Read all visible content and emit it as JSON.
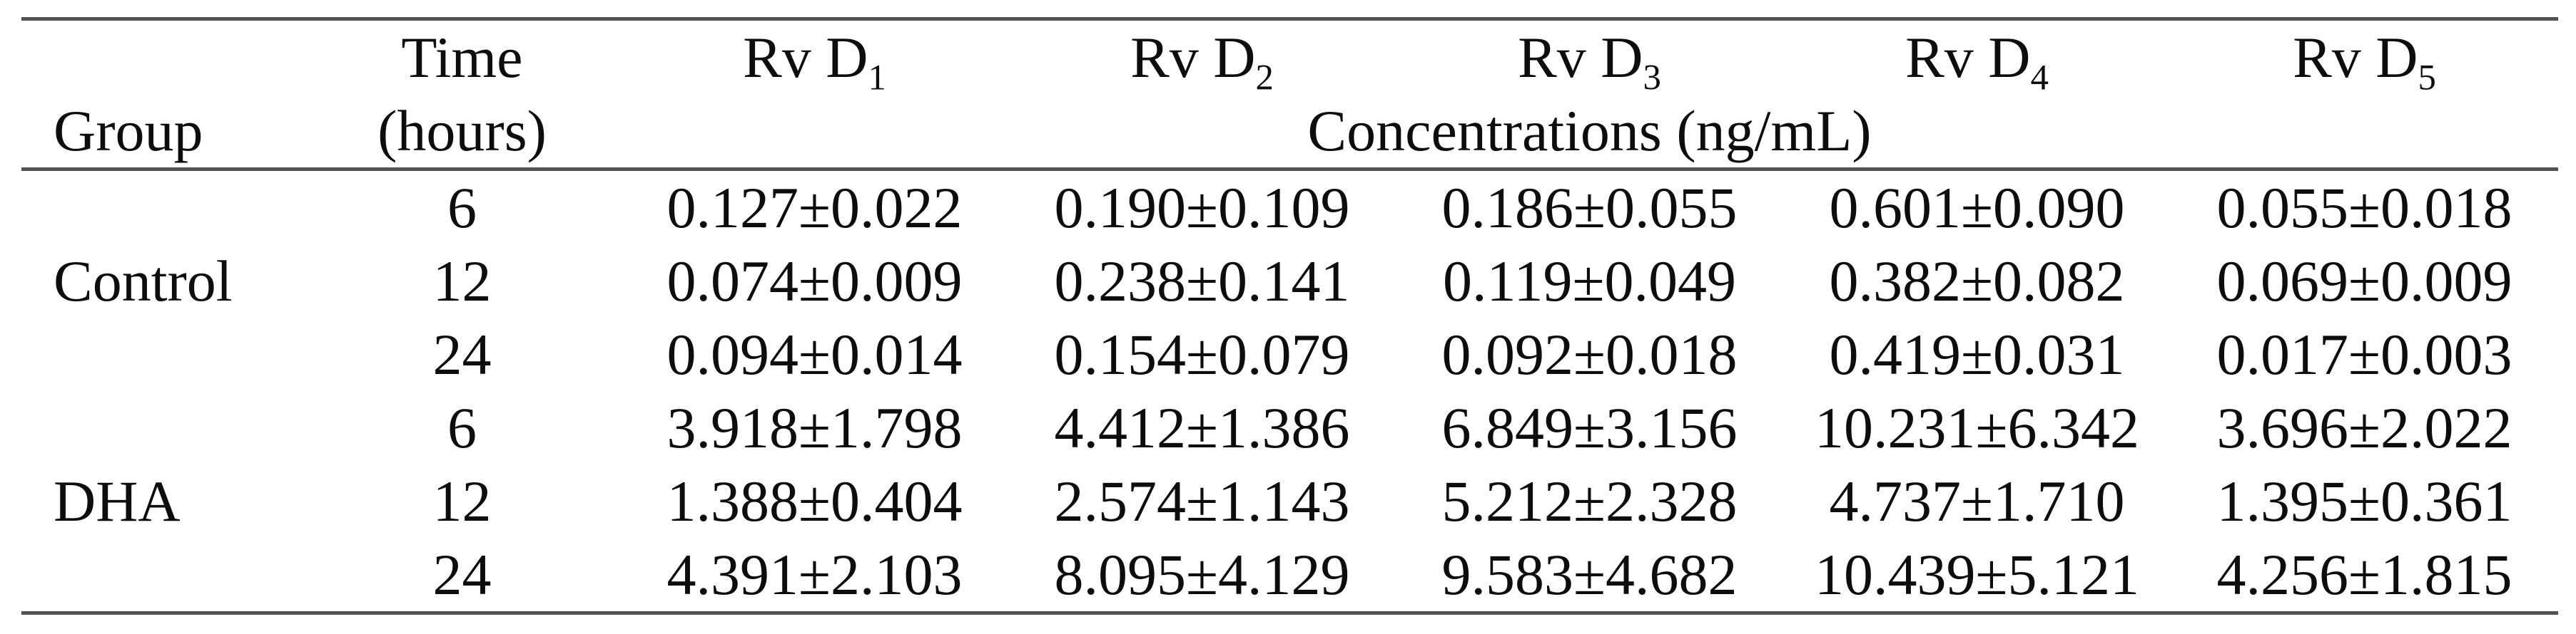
{
  "table": {
    "header": {
      "group_label": "Group",
      "time_label_line1": "Time",
      "time_label_line2": "(hours)",
      "columns": [
        {
          "base": "Rv D",
          "sub": "1"
        },
        {
          "base": "Rv D",
          "sub": "2"
        },
        {
          "base": "Rv D",
          "sub": "3"
        },
        {
          "base": "Rv D",
          "sub": "4"
        },
        {
          "base": "Rv D",
          "sub": "5"
        }
      ],
      "concentration_label": "Concentrations (ng/mL)"
    },
    "groups": [
      {
        "name": "Control",
        "rows": [
          {
            "time": "6",
            "values": [
              "0.127±0.022",
              "0.190±0.109",
              "0.186±0.055",
              "0.601±0.090",
              "0.055±0.018"
            ]
          },
          {
            "time": "12",
            "values": [
              "0.074±0.009",
              "0.238±0.141",
              "0.119±0.049",
              "0.382±0.082",
              "0.069±0.009"
            ]
          },
          {
            "time": "24",
            "values": [
              "0.094±0.014",
              "0.154±0.079",
              "0.092±0.018",
              "0.419±0.031",
              "0.017±0.003"
            ]
          }
        ]
      },
      {
        "name": "DHA",
        "rows": [
          {
            "time": "6",
            "values": [
              "3.918±1.798",
              "4.412±1.386",
              "6.849±3.156",
              "10.231±6.342",
              "3.696±2.022"
            ]
          },
          {
            "time": "12",
            "values": [
              "1.388±0.404",
              "2.574±1.143",
              "5.212±2.328",
              "4.737±1.710",
              "1.395±0.361"
            ]
          },
          {
            "time": "24",
            "values": [
              "4.391±2.103",
              "8.095±4.129",
              "9.583±4.682",
              "10.439±5.121",
              "4.256±1.815"
            ]
          }
        ]
      }
    ],
    "colors": {
      "rule": "#515151",
      "text": "#0d0d0d",
      "background": "#ffffff"
    }
  }
}
